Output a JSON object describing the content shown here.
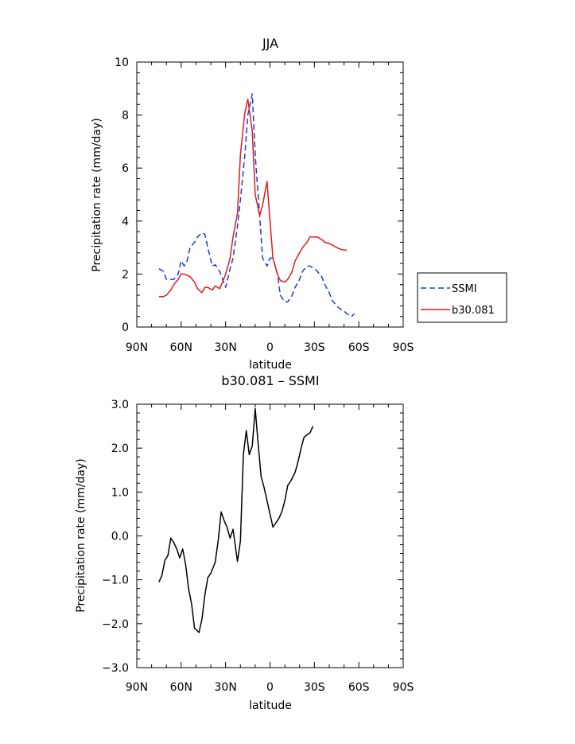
{
  "chart_data": [
    {
      "type": "line",
      "title": "JJA",
      "xlabel": "latitude",
      "ylabel": "Precipitation rate (mm/day)",
      "xlim": [
        90,
        -90
      ],
      "ylim": [
        0,
        10
      ],
      "x_ticks": [
        90,
        60,
        30,
        0,
        -30,
        -60,
        -90
      ],
      "x_tick_labels": [
        "90N",
        "60N",
        "30N",
        "0",
        "30S",
        "60S",
        "90S"
      ],
      "y_ticks": [
        0,
        2,
        4,
        6,
        8,
        10
      ],
      "y_tick_labels": [
        "0",
        "2",
        "4",
        "6",
        "8",
        "10"
      ],
      "grid": false,
      "legend_position": "right",
      "series": [
        {
          "name": "SSMI",
          "color": "#1f3ad6",
          "dash": "dashed",
          "x": [
            75,
            72,
            70,
            67,
            65,
            62,
            60,
            58,
            56,
            54,
            51,
            49,
            46,
            44,
            42,
            39,
            37,
            34,
            32,
            30,
            27,
            25,
            22,
            20,
            17,
            15,
            12,
            10,
            7,
            5,
            2,
            0,
            -2,
            -5,
            -7,
            -10,
            -12,
            -15,
            -17,
            -20,
            -22,
            -25,
            -27,
            -30,
            -32,
            -35,
            -37,
            -40,
            -42,
            -45,
            -47,
            -50,
            -52,
            -55,
            -57,
            -60,
            -62,
            -65
          ],
          "y": [
            2.2,
            2.1,
            1.8,
            1.8,
            1.8,
            2.0,
            2.5,
            2.3,
            2.5,
            3.0,
            3.2,
            3.4,
            3.55,
            3.5,
            3.0,
            2.3,
            2.35,
            2.1,
            1.8,
            1.5,
            2.2,
            2.6,
            3.8,
            4.8,
            6.5,
            8.0,
            8.8,
            6.5,
            4.2,
            2.6,
            2.3,
            2.6,
            2.6,
            2.0,
            1.2,
            0.95,
            0.95,
            1.2,
            1.5,
            1.8,
            2.1,
            2.3,
            2.3,
            2.2,
            2.1,
            1.9,
            1.6,
            1.3,
            1.0,
            0.8,
            0.7,
            0.6,
            0.5,
            0.4,
            0.5,
            null,
            null,
            null
          ]
        },
        {
          "name": "b30.081",
          "color": "#dd1c1c",
          "dash": "solid",
          "x": [
            75,
            72,
            70,
            67,
            65,
            62,
            60,
            58,
            56,
            54,
            51,
            49,
            46,
            44,
            42,
            39,
            37,
            34,
            32,
            30,
            27,
            25,
            22,
            20,
            17,
            15,
            12,
            10,
            7,
            5,
            2,
            0,
            -2,
            -5,
            -7,
            -10,
            -12,
            -15,
            -17,
            -20,
            -22,
            -25,
            -27,
            -30,
            -32,
            -35,
            -37,
            -40,
            -42,
            -45,
            -47,
            -50,
            -52,
            -55,
            -57,
            -60,
            -62,
            -65
          ],
          "y": [
            1.15,
            1.15,
            1.2,
            1.4,
            1.6,
            1.8,
            2.0,
            2.0,
            1.95,
            1.9,
            1.7,
            1.45,
            1.3,
            1.5,
            1.5,
            1.4,
            1.55,
            1.45,
            1.7,
            2.0,
            2.6,
            3.4,
            4.3,
            6.5,
            8.1,
            8.6,
            7.4,
            5.0,
            4.2,
            4.6,
            5.5,
            4.0,
            2.6,
            2.0,
            1.75,
            1.7,
            1.8,
            2.1,
            2.5,
            2.8,
            3.0,
            3.2,
            3.4,
            3.4,
            3.4,
            3.3,
            3.2,
            3.15,
            3.1,
            3.0,
            2.95,
            2.9,
            2.9,
            null,
            null,
            null,
            null,
            null
          ]
        }
      ]
    },
    {
      "type": "line",
      "title": "b30.081 – SSMI",
      "xlabel": "latitude",
      "ylabel": "Precipitation rate (mm/day)",
      "xlim": [
        90,
        -90
      ],
      "ylim": [
        -3.0,
        3.0
      ],
      "x_ticks": [
        90,
        60,
        30,
        0,
        -30,
        -60,
        -90
      ],
      "x_tick_labels": [
        "90N",
        "60N",
        "30N",
        "0",
        "30S",
        "60S",
        "90S"
      ],
      "y_ticks": [
        -3,
        -2,
        -1,
        0,
        1,
        2,
        3
      ],
      "y_tick_labels": [
        "−3.0",
        "−2.0",
        "−1.0",
        "0.0",
        "1.0",
        "2.0",
        "3.0"
      ],
      "grid": false,
      "series": [
        {
          "name": "",
          "color": "#000000",
          "dash": "solid",
          "x": [
            75,
            73,
            71,
            69,
            67,
            65,
            63,
            61,
            59,
            57,
            55,
            53,
            51,
            48,
            46,
            44,
            42,
            40,
            37,
            35,
            33,
            31,
            29,
            27,
            25,
            22,
            20,
            18,
            16,
            14,
            12,
            10,
            8,
            6,
            4,
            2,
            0,
            -2,
            -4,
            -6,
            -8,
            -10,
            -12,
            -14,
            -17,
            -19,
            -21,
            -23,
            -25,
            -27,
            -29,
            -31,
            -33,
            -35,
            -38,
            -40,
            -42,
            -44,
            -46,
            -48,
            -50,
            -52,
            -54,
            -56,
            -58,
            -60,
            -62
          ],
          "y": [
            -1.05,
            -0.9,
            -0.55,
            -0.45,
            -0.05,
            -0.15,
            -0.3,
            -0.5,
            -0.3,
            -0.65,
            -1.2,
            -1.55,
            -2.1,
            -2.2,
            -1.9,
            -1.35,
            -0.95,
            -0.85,
            -0.6,
            -0.1,
            0.55,
            0.35,
            0.2,
            -0.05,
            0.15,
            -0.58,
            -0.12,
            1.85,
            2.4,
            1.85,
            2.05,
            2.9,
            2.1,
            1.35,
            1.1,
            0.8,
            0.5,
            0.2,
            0.3,
            0.4,
            0.55,
            0.8,
            1.15,
            1.25,
            1.45,
            1.7,
            2.0,
            2.25,
            2.3,
            2.35,
            2.5,
            null,
            null,
            null,
            null,
            null,
            null,
            null,
            null,
            null,
            null,
            null,
            null,
            null,
            null,
            null,
            null
          ]
        }
      ]
    }
  ]
}
